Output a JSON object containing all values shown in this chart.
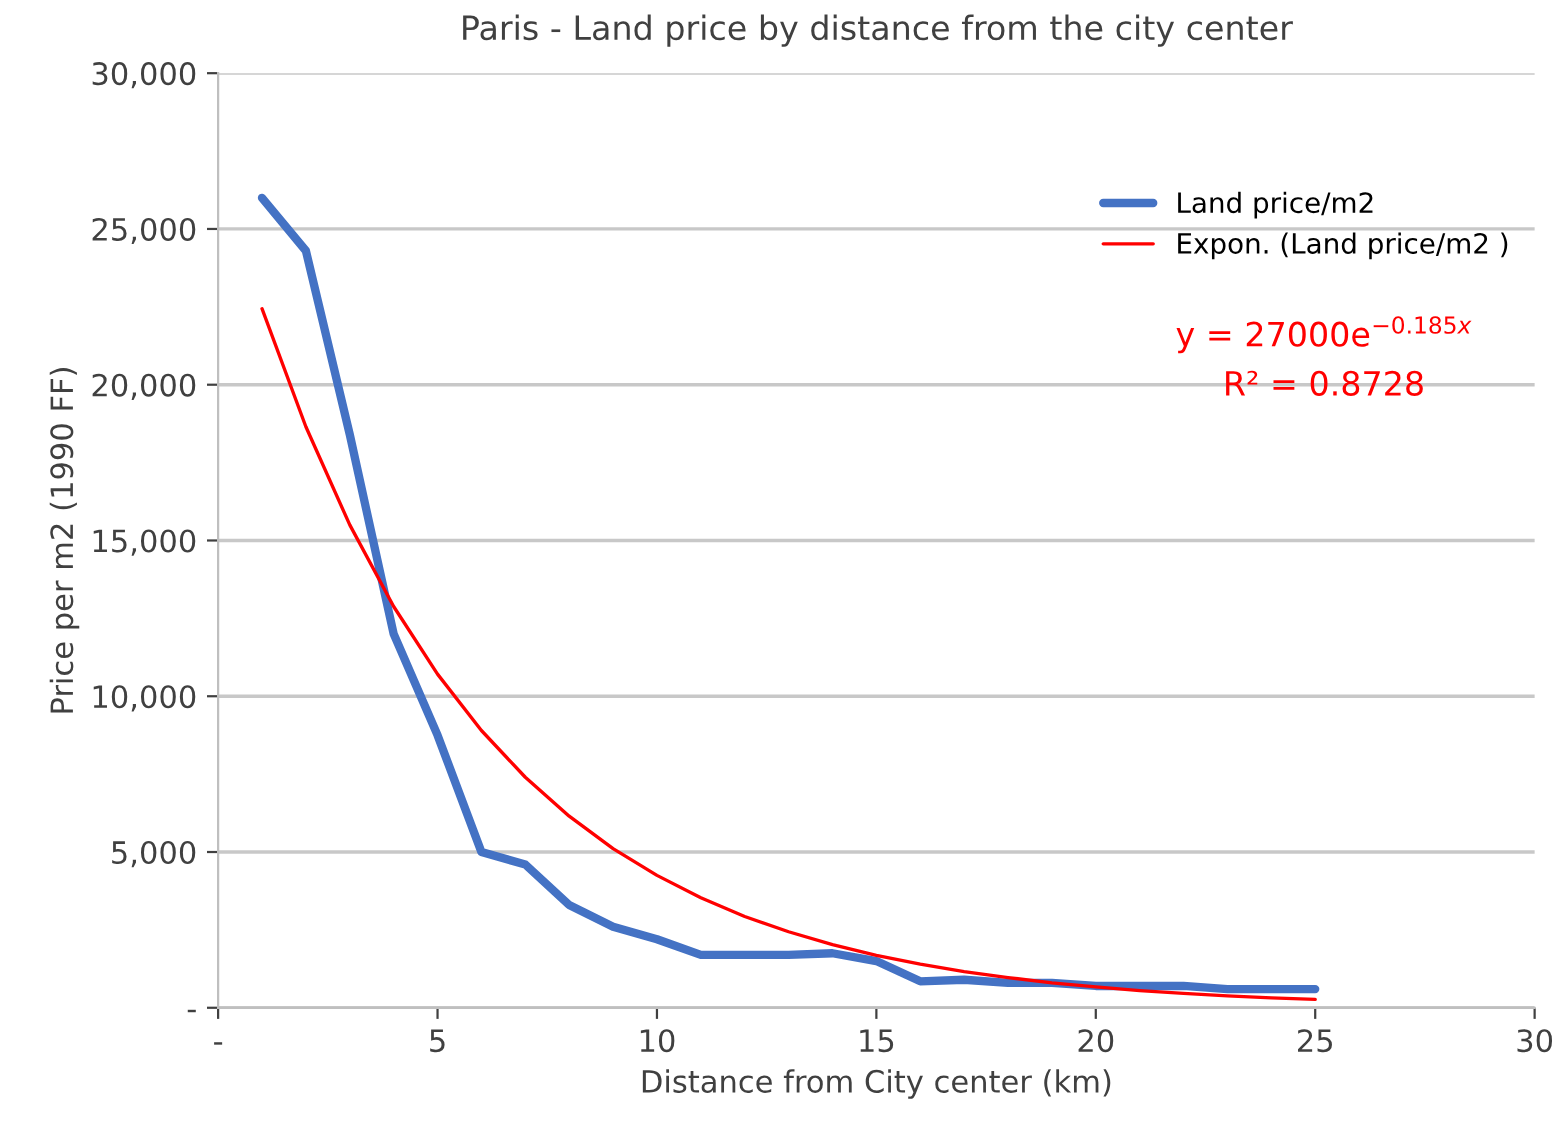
{
  "chart_data": {
    "type": "line",
    "title": "Paris - Land price by distance from the city center",
    "xlabel": "Distance from City center (km)",
    "ylabel": "Price per m2 (1990 FF)",
    "x": [
      1,
      2,
      3,
      4,
      5,
      6,
      7,
      8,
      9,
      10,
      11,
      12,
      13,
      14,
      15,
      16,
      17,
      18,
      19,
      20,
      21,
      22,
      23,
      24,
      25
    ],
    "series": [
      {
        "name": "Land price/m2",
        "color": "#4472c4",
        "values": [
          26000,
          24300,
          18400,
          12000,
          8750,
          5000,
          4600,
          3300,
          2600,
          2200,
          1700,
          1700,
          1700,
          1750,
          1500,
          850,
          900,
          800,
          800,
          700,
          700,
          700,
          600,
          600,
          600
        ]
      },
      {
        "name": "Expon. (Land price/m2 )",
        "color": "#ff0000",
        "values": [
          22440,
          18650,
          15500,
          12880,
          10710,
          8900,
          7400,
          6150,
          5110,
          4250,
          3530,
          2930,
          2440,
          2030,
          1680,
          1400,
          1160,
          970,
          800,
          670,
          550,
          460,
          380,
          320,
          270
        ]
      }
    ],
    "annotations": [
      "y = 27000e$^{−0.185x}$",
      "R² = 0.8728"
    ],
    "xlim": [
      0,
      30
    ],
    "xticks": [
      {
        "value": 0,
        "label": "-"
      },
      5,
      10,
      15,
      20,
      25,
      30
    ],
    "ylim": [
      0,
      30000
    ],
    "yticks": [
      {
        "value": 0,
        "label": "-"
      },
      {
        "value": 5000,
        "label": "5,000"
      },
      {
        "value": 10000,
        "label": "10,000"
      },
      {
        "value": 15000,
        "label": "15,000"
      },
      {
        "value": 20000,
        "label": "20,000"
      },
      {
        "value": 25000,
        "label": "25,000"
      },
      {
        "value": 30000,
        "label": "30,000"
      }
    ],
    "grid": "y",
    "legend": "top right",
    "marker": "none",
    "line_style": "solid"
  }
}
